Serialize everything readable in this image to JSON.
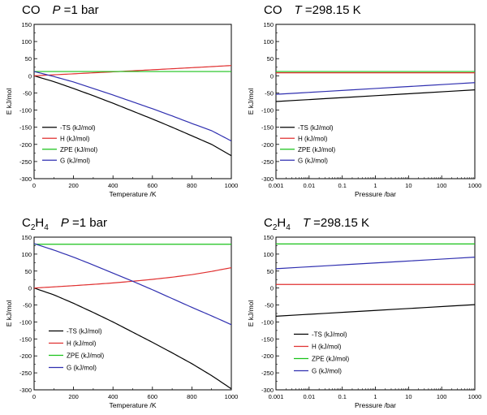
{
  "chart_data": [
    {
      "type": "line",
      "title": {
        "species": "CO",
        "condition_var": "P",
        "condition_value": "=1 bar"
      },
      "xlabel": "Temperature /K",
      "ylabel": "E kJ/mol",
      "xscale": "linear",
      "xlim": [
        0,
        1000
      ],
      "ylim": [
        -300,
        150
      ],
      "xticks": [
        0,
        200,
        400,
        600,
        800,
        1000
      ],
      "xtick_labels": [
        "0",
        "200",
        "400",
        "600",
        "800",
        "1000"
      ],
      "yticks": [
        -300,
        -250,
        -200,
        -150,
        -100,
        -50,
        0,
        50,
        100,
        150
      ],
      "ytick_labels": [
        "-300",
        "-250",
        "-200",
        "-150",
        "-100",
        "-50",
        "0",
        "50",
        "100",
        "150"
      ],
      "legend_position": "lower-left",
      "series": [
        {
          "name": "-TS  (kJ/mol)",
          "color": "#000000",
          "x": [
            0,
            100,
            200,
            300,
            400,
            500,
            600,
            700,
            800,
            900,
            1000
          ],
          "y": [
            0,
            -17,
            -37,
            -58,
            -80,
            -103,
            -126,
            -150,
            -175,
            -200,
            -233
          ]
        },
        {
          "name": "H (kJ/mol)",
          "color": "#e03030",
          "x": [
            0,
            100,
            200,
            300,
            400,
            500,
            600,
            700,
            800,
            900,
            1000
          ],
          "y": [
            0,
            2.9,
            5.8,
            8.7,
            11.6,
            14.6,
            17.6,
            20.6,
            23.7,
            26.8,
            30
          ]
        },
        {
          "name": "ZPE (kJ/mol)",
          "color": "#19c219",
          "x": [
            0,
            1000
          ],
          "y": [
            12.5,
            12.5
          ]
        },
        {
          "name": "G (kJ/mol)",
          "color": "#2f2fb0",
          "x": [
            0,
            100,
            200,
            300,
            400,
            500,
            600,
            700,
            800,
            900,
            1000
          ],
          "y": [
            12.5,
            -2,
            -18,
            -37,
            -56,
            -76,
            -96,
            -117,
            -139,
            -160,
            -190
          ]
        }
      ]
    },
    {
      "type": "line",
      "title": {
        "species": "CO",
        "condition_var": "T",
        "condition_value": "=298.15 K"
      },
      "xlabel": "Pressure /bar",
      "ylabel": "E kJ/mol",
      "xscale": "log",
      "xlim": [
        0.001,
        1000
      ],
      "ylim": [
        -300,
        150
      ],
      "xticks": [
        0.001,
        0.01,
        0.1,
        1,
        10,
        100,
        1000
      ],
      "xtick_labels": [
        "0.001",
        "0.01",
        "0.1",
        "1",
        "10",
        "100",
        "1000"
      ],
      "yticks": [
        -300,
        -250,
        -200,
        -150,
        -100,
        -50,
        0,
        50,
        100,
        150
      ],
      "ytick_labels": [
        "-300",
        "-250",
        "-200",
        "-150",
        "-100",
        "-50",
        "0",
        "50",
        "100",
        "150"
      ],
      "legend_position": "lower-left",
      "series": [
        {
          "name": "-TS  (kJ/mol)",
          "color": "#000000",
          "x": [
            0.001,
            1000
          ],
          "y": [
            -75,
            -41
          ]
        },
        {
          "name": "H (kJ/mol)",
          "color": "#e03030",
          "x": [
            0.001,
            1000
          ],
          "y": [
            8.7,
            8.7
          ]
        },
        {
          "name": "ZPE (kJ/mol)",
          "color": "#19c219",
          "x": [
            0.001,
            1000
          ],
          "y": [
            12.5,
            12.5
          ]
        },
        {
          "name": "G (kJ/mol)",
          "color": "#2f2fb0",
          "x": [
            0.001,
            1000
          ],
          "y": [
            -54,
            -20
          ]
        }
      ]
    },
    {
      "type": "line",
      "title": {
        "species": "C",
        "species_sub1": "2",
        "species_mid": "H",
        "species_sub2": "4",
        "condition_var": "P",
        "condition_value": "=1 bar"
      },
      "xlabel": "Temperature /K",
      "ylabel": "E kJ/mol",
      "xscale": "linear",
      "xlim": [
        0,
        1000
      ],
      "ylim": [
        -300,
        150
      ],
      "xticks": [
        0,
        200,
        400,
        600,
        800,
        1000
      ],
      "xtick_labels": [
        "0",
        "200",
        "400",
        "600",
        "800",
        "1000"
      ],
      "yticks": [
        -300,
        -250,
        -200,
        -150,
        -100,
        -50,
        0,
        50,
        100,
        150
      ],
      "ytick_labels": [
        "-300",
        "-250",
        "-200",
        "-150",
        "-100",
        "-50",
        "0",
        "50",
        "100",
        "150"
      ],
      "legend_position": "lower-left",
      "series": [
        {
          "name": "-TS  (kJ/mol)",
          "color": "#000000",
          "x": [
            0,
            100,
            200,
            300,
            400,
            500,
            600,
            700,
            800,
            900,
            1000
          ],
          "y": [
            0,
            -20,
            -45,
            -72,
            -100,
            -130,
            -160,
            -191,
            -223,
            -258,
            -297
          ]
        },
        {
          "name": "H (kJ/mol)",
          "color": "#e03030",
          "x": [
            0,
            100,
            200,
            300,
            400,
            500,
            600,
            700,
            800,
            900,
            1000
          ],
          "y": [
            0,
            3.4,
            7,
            10.8,
            15,
            20,
            25.6,
            32,
            39.5,
            49,
            60
          ]
        },
        {
          "name": "ZPE (kJ/mol)",
          "color": "#19c219",
          "x": [
            0,
            1000
          ],
          "y": [
            129,
            129
          ]
        },
        {
          "name": "G (kJ/mol)",
          "color": "#2f2fb0",
          "x": [
            0,
            100,
            200,
            300,
            400,
            500,
            600,
            700,
            800,
            900,
            1000
          ],
          "y": [
            131,
            112,
            91,
            68,
            44,
            20,
            -5,
            -31,
            -57,
            -82,
            -108
          ]
        }
      ]
    },
    {
      "type": "line",
      "title": {
        "species": "C",
        "species_sub1": "2",
        "species_mid": "H",
        "species_sub2": "4",
        "condition_var": "T",
        "condition_value": "=298.15 K"
      },
      "xlabel": "Pressure /bar",
      "ylabel": "E kJ/mol",
      "xscale": "log",
      "xlim": [
        0.001,
        1000
      ],
      "ylim": [
        -300,
        150
      ],
      "xticks": [
        0.001,
        0.01,
        0.1,
        1,
        10,
        100,
        1000
      ],
      "xtick_labels": [
        "0.001",
        "0.01",
        "0.1",
        "1",
        "10",
        "100",
        "1000"
      ],
      "yticks": [
        -300,
        -250,
        -200,
        -150,
        -100,
        -50,
        0,
        50,
        100,
        150
      ],
      "ytick_labels": [
        "-300",
        "-250",
        "-200",
        "-150",
        "-100",
        "-50",
        "0",
        "50",
        "100",
        "150"
      ],
      "legend_position": "lower-left",
      "series": [
        {
          "name": "-TS  (kJ/mol)",
          "color": "#000000",
          "x": [
            0.001,
            1000
          ],
          "y": [
            -83,
            -49
          ]
        },
        {
          "name": "H (kJ/mol)",
          "color": "#e03030",
          "x": [
            0.001,
            1000
          ],
          "y": [
            10.5,
            10.5
          ]
        },
        {
          "name": "ZPE (kJ/mol)",
          "color": "#19c219",
          "x": [
            0.001,
            1000
          ],
          "y": [
            130,
            130
          ]
        },
        {
          "name": "G (kJ/mol)",
          "color": "#2f2fb0",
          "x": [
            0.001,
            1000
          ],
          "y": [
            57,
            91
          ]
        }
      ]
    }
  ]
}
